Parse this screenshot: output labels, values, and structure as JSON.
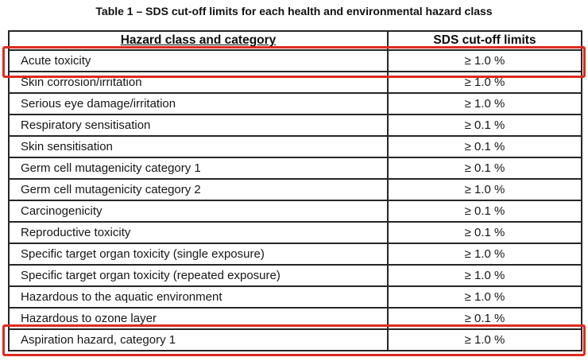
{
  "page": {
    "title": "Table 1 – SDS cut-off limits for each health and environmental hazard class"
  },
  "table": {
    "headers": {
      "hazard": "Hazard class and category",
      "limit": "SDS cut-off limits"
    },
    "rows": [
      {
        "hazard": "Acute toxicity",
        "limit": "≥ 1.0 %",
        "highlighted": true
      },
      {
        "hazard": "Skin corrosion/irritation",
        "limit": "≥ 1.0 %",
        "highlighted": false
      },
      {
        "hazard": "Serious eye damage/irritation",
        "limit": "≥ 1.0 %",
        "highlighted": false
      },
      {
        "hazard": "Respiratory sensitisation",
        "limit": "≥ 0.1 %",
        "highlighted": false
      },
      {
        "hazard": "Skin sensitisation",
        "limit": "≥ 0.1 %",
        "highlighted": false
      },
      {
        "hazard": "Germ cell mutagenicity category 1",
        "limit": "≥ 0.1 %",
        "highlighted": false
      },
      {
        "hazard": "Germ cell mutagenicity category 2",
        "limit": "≥ 1.0 %",
        "highlighted": false
      },
      {
        "hazard": "Carcinogenicity",
        "limit": "≥ 0.1 %",
        "highlighted": false
      },
      {
        "hazard": "Reproductive toxicity",
        "limit": "≥ 0.1 %",
        "highlighted": false
      },
      {
        "hazard": "Specific target organ toxicity (single exposure)",
        "limit": "≥ 1.0 %",
        "highlighted": false
      },
      {
        "hazard": "Specific target organ toxicity (repeated exposure)",
        "limit": "≥ 1.0 %",
        "highlighted": false
      },
      {
        "hazard": "Hazardous to the aquatic environment",
        "limit": "≥ 1.0 %",
        "highlighted": false
      },
      {
        "hazard": "Hazardous to ozone layer",
        "limit": "≥ 0.1 %",
        "highlighted": false
      },
      {
        "hazard": "Aspiration hazard, category 1",
        "limit": "≥ 1.0 %",
        "highlighted": true
      }
    ]
  },
  "annotations": {
    "highlight_color": "#dd2b20"
  }
}
